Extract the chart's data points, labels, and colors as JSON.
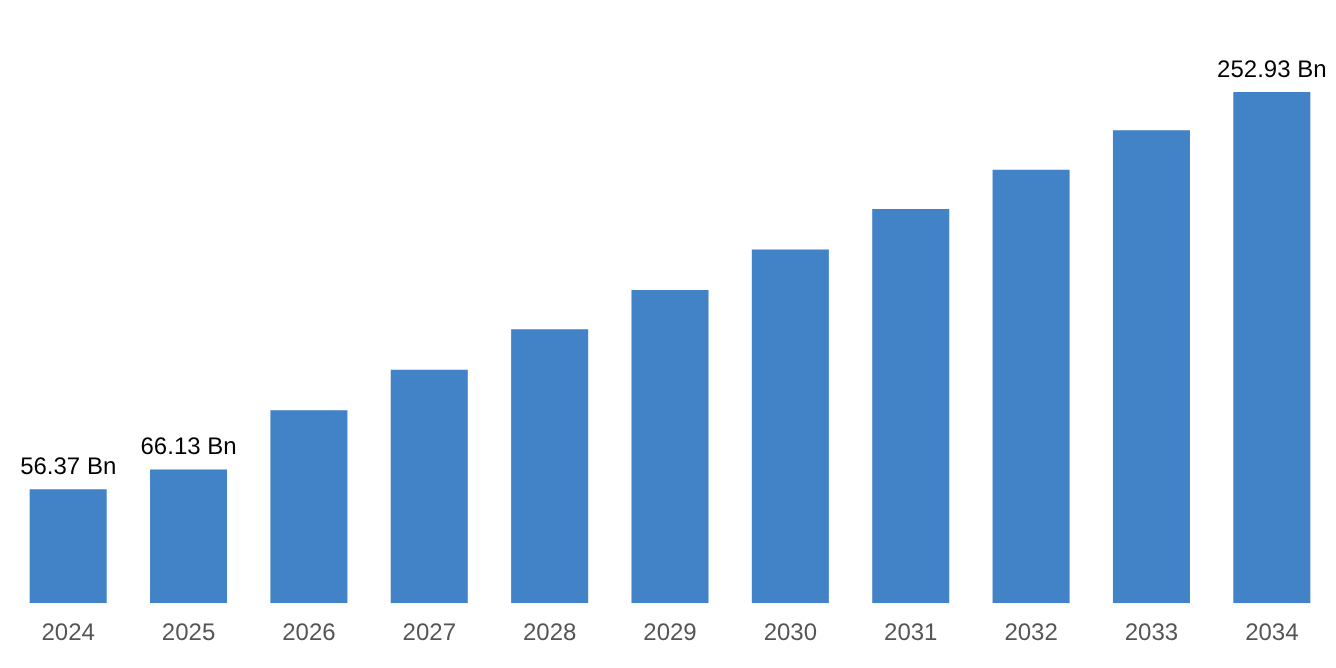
{
  "chart_data": {
    "type": "bar",
    "categories": [
      "2024",
      "2025",
      "2026",
      "2027",
      "2028",
      "2029",
      "2030",
      "2031",
      "2032",
      "2033",
      "2034"
    ],
    "values": [
      56.37,
      66.13,
      95.5,
      115.5,
      135.5,
      155,
      175,
      195,
      214.5,
      234,
      252.93
    ],
    "value_labels": [
      "56.37 Bn",
      "66.13 Bn",
      null,
      null,
      null,
      null,
      null,
      null,
      null,
      null,
      "252.93 Bn"
    ],
    "color": "#4282c6",
    "tick_labels": "x",
    "grid": false,
    "legend": false
  }
}
